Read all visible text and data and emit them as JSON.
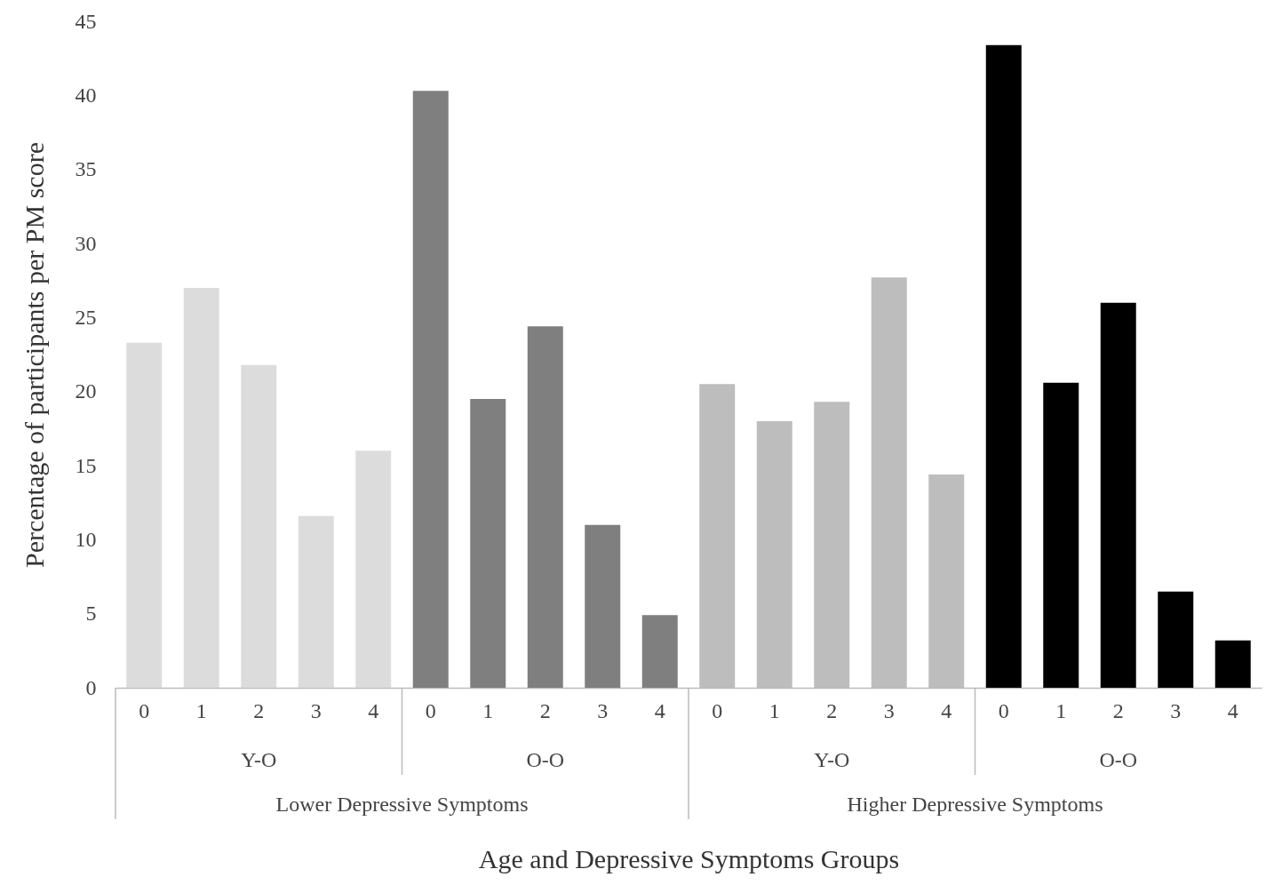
{
  "chart_data": {
    "type": "bar",
    "xlabel": "Age and Depressive Symptoms Groups",
    "ylabel": "Percentage of participants per PM score",
    "categories": [
      "0",
      "1",
      "2",
      "3",
      "4",
      "0",
      "1",
      "2",
      "3",
      "4",
      "0",
      "1",
      "2",
      "3",
      "4",
      "0",
      "1",
      "2",
      "3",
      "4"
    ],
    "values": [
      23.3,
      27.0,
      21.8,
      11.6,
      16.0,
      40.3,
      19.5,
      24.4,
      11.0,
      4.9,
      20.5,
      18.0,
      19.3,
      27.7,
      14.4,
      43.4,
      20.6,
      26.0,
      6.5,
      3.2
    ],
    "colors": [
      "#dcdcdc",
      "#dcdcdc",
      "#dcdcdc",
      "#dcdcdc",
      "#dcdcdc",
      "#7f7f7f",
      "#7f7f7f",
      "#7f7f7f",
      "#7f7f7f",
      "#7f7f7f",
      "#bdbdbd",
      "#bdbdbd",
      "#bdbdbd",
      "#bdbdbd",
      "#bdbdbd",
      "#000000",
      "#000000",
      "#000000",
      "#000000",
      "#000000"
    ],
    "ylim": [
      0,
      45
    ],
    "yticks": [
      0,
      5,
      10,
      15,
      20,
      25,
      30,
      35,
      40,
      45
    ],
    "grid": false,
    "annotations": [
      "Y-O",
      "O-O",
      "Y-O",
      "O-O",
      "Lower Depressive Symptoms",
      "Higher Depressive Symptoms"
    ]
  }
}
